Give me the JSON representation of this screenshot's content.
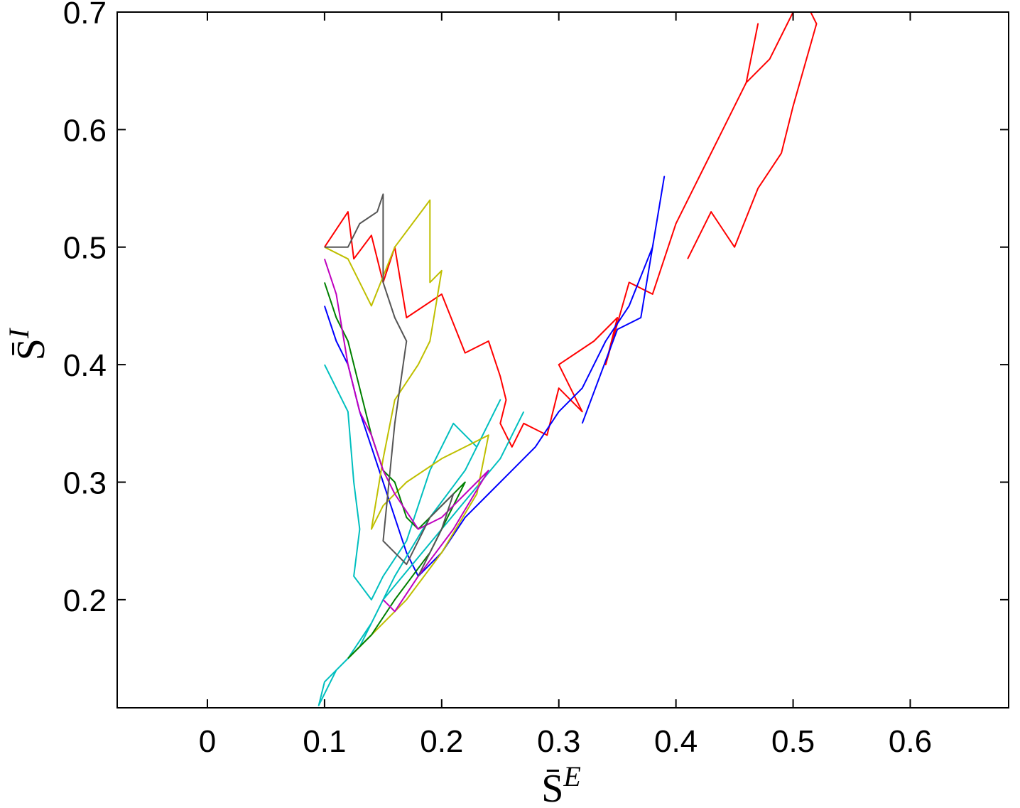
{
  "chart_data": {
    "type": "line",
    "xlabel": {
      "base": "S̄",
      "sup": "E"
    },
    "ylabel": {
      "base": "S̄",
      "sup": "I"
    },
    "xlim": [
      -0.077,
      0.684
    ],
    "ylim": [
      0.108,
      0.7
    ],
    "xticks": [
      0,
      0.1,
      0.2,
      0.3,
      0.4,
      0.5,
      0.6
    ],
    "yticks": [
      0.2,
      0.3,
      0.4,
      0.5,
      0.6,
      0.7
    ],
    "series": [
      {
        "color": "#ff0000",
        "x": [
          0.1,
          0.12,
          0.125,
          0.14,
          0.15,
          0.16,
          0.17,
          0.2,
          0.22,
          0.24,
          0.25,
          0.255,
          0.25,
          0.26,
          0.27,
          0.29,
          0.3,
          0.32,
          0.3,
          0.33,
          0.35,
          0.34,
          0.36,
          0.38,
          0.4,
          0.42,
          0.44,
          0.46,
          0.47,
          0.46,
          0.48,
          0.5,
          0.515,
          0.52,
          0.5,
          0.49,
          0.47,
          0.45,
          0.43,
          0.41
        ],
        "y": [
          0.5,
          0.53,
          0.49,
          0.51,
          0.47,
          0.5,
          0.44,
          0.46,
          0.41,
          0.42,
          0.39,
          0.37,
          0.35,
          0.33,
          0.35,
          0.34,
          0.38,
          0.36,
          0.4,
          0.42,
          0.44,
          0.4,
          0.47,
          0.46,
          0.52,
          0.56,
          0.6,
          0.64,
          0.69,
          0.64,
          0.66,
          0.7,
          0.7,
          0.69,
          0.62,
          0.58,
          0.55,
          0.5,
          0.53,
          0.49
        ]
      },
      {
        "color": "#0000ff",
        "x": [
          0.1,
          0.11,
          0.12,
          0.13,
          0.14,
          0.15,
          0.16,
          0.17,
          0.18,
          0.2,
          0.22,
          0.24,
          0.26,
          0.28,
          0.3,
          0.32,
          0.34,
          0.36,
          0.38,
          0.39,
          0.37,
          0.35,
          0.32
        ],
        "y": [
          0.45,
          0.42,
          0.4,
          0.36,
          0.33,
          0.3,
          0.27,
          0.24,
          0.22,
          0.24,
          0.27,
          0.29,
          0.31,
          0.33,
          0.36,
          0.38,
          0.42,
          0.45,
          0.5,
          0.56,
          0.44,
          0.43,
          0.35
        ]
      },
      {
        "color": "#00bfbf",
        "x": [
          0.1,
          0.11,
          0.12,
          0.125,
          0.13,
          0.125,
          0.14,
          0.15,
          0.17,
          0.19,
          0.21,
          0.23,
          0.25,
          0.22,
          0.19,
          0.16,
          0.14,
          0.12,
          0.1,
          0.095,
          0.11,
          0.13,
          0.15,
          0.2,
          0.25,
          0.27
        ],
        "y": [
          0.4,
          0.38,
          0.36,
          0.3,
          0.26,
          0.22,
          0.2,
          0.22,
          0.25,
          0.31,
          0.35,
          0.33,
          0.37,
          0.31,
          0.27,
          0.22,
          0.18,
          0.15,
          0.13,
          0.11,
          0.14,
          0.16,
          0.2,
          0.26,
          0.32,
          0.36
        ]
      },
      {
        "color": "#bfbf00",
        "x": [
          0.1,
          0.12,
          0.14,
          0.16,
          0.19,
          0.19,
          0.2,
          0.19,
          0.18,
          0.16,
          0.15,
          0.14,
          0.15,
          0.17,
          0.2,
          0.22,
          0.24,
          0.23,
          0.2,
          0.17,
          0.14,
          0.12
        ],
        "y": [
          0.5,
          0.49,
          0.45,
          0.5,
          0.54,
          0.47,
          0.48,
          0.42,
          0.4,
          0.37,
          0.32,
          0.26,
          0.28,
          0.3,
          0.32,
          0.33,
          0.34,
          0.29,
          0.24,
          0.2,
          0.17,
          0.15
        ]
      },
      {
        "color": "#008000",
        "x": [
          0.1,
          0.11,
          0.12,
          0.13,
          0.14,
          0.15,
          0.16,
          0.17,
          0.18,
          0.2,
          0.22,
          0.19,
          0.16,
          0.14,
          0.12
        ],
        "y": [
          0.47,
          0.44,
          0.42,
          0.38,
          0.34,
          0.31,
          0.3,
          0.27,
          0.26,
          0.28,
          0.3,
          0.24,
          0.2,
          0.17,
          0.15
        ]
      },
      {
        "color": "#bf00bf",
        "x": [
          0.1,
          0.11,
          0.12,
          0.13,
          0.14,
          0.15,
          0.16,
          0.18,
          0.2,
          0.22,
          0.24,
          0.21,
          0.18,
          0.16,
          0.15
        ],
        "y": [
          0.49,
          0.46,
          0.4,
          0.36,
          0.34,
          0.31,
          0.29,
          0.26,
          0.27,
          0.29,
          0.31,
          0.26,
          0.22,
          0.19,
          0.2
        ]
      },
      {
        "color": "#555555",
        "x": [
          0.1,
          0.12,
          0.13,
          0.145,
          0.15,
          0.15,
          0.16,
          0.17,
          0.16,
          0.15,
          0.17,
          0.19,
          0.21,
          0.2,
          0.18
        ],
        "y": [
          0.5,
          0.5,
          0.52,
          0.53,
          0.545,
          0.47,
          0.44,
          0.42,
          0.35,
          0.25,
          0.23,
          0.27,
          0.29,
          0.26,
          0.22
        ]
      }
    ]
  }
}
